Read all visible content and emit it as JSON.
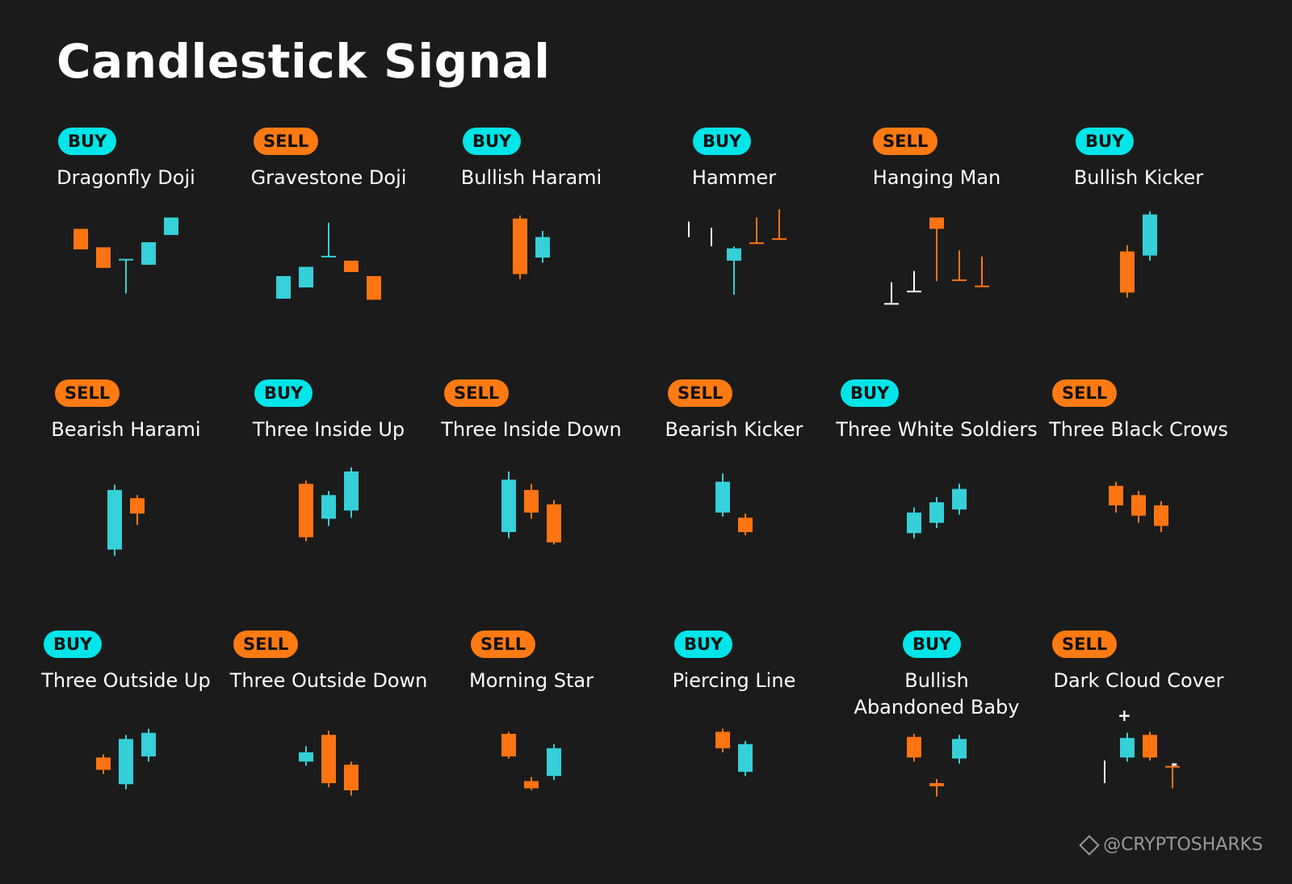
{
  "title": "Candlestick Signal",
  "watermark": "@CRYPTOSHARKS",
  "colors": {
    "bull": "#35d0d8",
    "bear": "#ff7412",
    "neutral": "#ffffff",
    "buy_badge": "#00e5e8",
    "sell_badge": "#ff7a12",
    "background": "#1b1b1b"
  },
  "patterns": [
    {
      "signal": "BUY",
      "name": "Dragonfly Doji",
      "candles": [
        {
          "o": 90,
          "c": 70,
          "h": 90,
          "l": 70
        },
        {
          "o": 72,
          "c": 52,
          "h": 72,
          "l": 52
        },
        {
          "o": 60,
          "c": 60,
          "h": 60,
          "l": 27
        },
        {
          "o": 55,
          "c": 77,
          "h": 77,
          "l": 55
        },
        {
          "o": 84,
          "c": 101,
          "h": 101,
          "l": 84
        }
      ]
    },
    {
      "signal": "SELL",
      "name": "Gravestone Doji",
      "candles": [
        {
          "o": 22,
          "c": 44,
          "h": 44,
          "l": 22
        },
        {
          "o": 33,
          "c": 53,
          "h": 53,
          "l": 33
        },
        {
          "o": 63,
          "c": 63,
          "h": 96,
          "l": 63
        },
        {
          "o": 59,
          "c": 48,
          "h": 59,
          "l": 48
        },
        {
          "o": 44,
          "c": 21,
          "h": 44,
          "l": 21
        }
      ]
    },
    {
      "signal": "BUY",
      "name": "Bullish Harami",
      "candles": [
        {
          "o": 100,
          "c": 46,
          "h": 103,
          "l": 41
        },
        {
          "o": 62,
          "c": 82,
          "h": 88,
          "l": 57
        }
      ]
    },
    {
      "signal": "BUY",
      "name": "Hammer",
      "candles": [
        {
          "o": 97,
          "c": 97,
          "h": 97,
          "l": 82,
          "style": "neutral"
        },
        {
          "o": 91,
          "c": 91,
          "h": 91,
          "l": 73,
          "style": "neutral"
        },
        {
          "o": 59,
          "c": 71,
          "h": 73,
          "l": 26
        },
        {
          "o": 76,
          "c": 76,
          "h": 101,
          "l": 76,
          "style": "bear"
        },
        {
          "o": 80,
          "c": 80,
          "h": 109,
          "l": 80,
          "style": "bear"
        }
      ]
    },
    {
      "signal": "SELL",
      "name": "Hanging Man",
      "candles": [
        {
          "o": 17,
          "c": 17,
          "h": 38,
          "l": 17,
          "style": "neutral"
        },
        {
          "o": 29,
          "c": 29,
          "h": 49,
          "l": 29,
          "style": "neutral"
        },
        {
          "o": 101,
          "c": 90,
          "h": 101,
          "l": 39
        },
        {
          "o": 40,
          "c": 40,
          "h": 69,
          "l": 40,
          "style": "bear"
        },
        {
          "o": 34,
          "c": 34,
          "h": 63,
          "l": 34,
          "style": "bear"
        }
      ]
    },
    {
      "signal": "BUY",
      "name": "Bullish Kicker",
      "candles": [
        {
          "o": 68,
          "c": 28,
          "h": 74,
          "l": 23
        },
        {
          "o": 64,
          "c": 104,
          "h": 107,
          "l": 59
        }
      ]
    },
    {
      "signal": "SELL",
      "name": "Bearish Harami",
      "candles": [
        {
          "o": 23,
          "c": 81,
          "h": 86,
          "l": 17
        },
        {
          "o": 73,
          "c": 58,
          "h": 76,
          "l": 47
        }
      ]
    },
    {
      "signal": "BUY",
      "name": "Three Inside Up",
      "candles": [
        {
          "o": 87,
          "c": 35,
          "h": 90,
          "l": 31
        },
        {
          "o": 53,
          "c": 76,
          "h": 80,
          "l": 46
        },
        {
          "o": 61,
          "c": 99,
          "h": 103,
          "l": 54
        }
      ]
    },
    {
      "signal": "SELL",
      "name": "Three Inside Down",
      "candles": [
        {
          "o": 40,
          "c": 91,
          "h": 99,
          "l": 34
        },
        {
          "o": 81,
          "c": 59,
          "h": 87,
          "l": 53
        },
        {
          "o": 67,
          "c": 30,
          "h": 71,
          "l": 28
        }
      ]
    },
    {
      "signal": "SELL",
      "name": "Bearish Kicker",
      "candles": [
        {
          "o": 59,
          "c": 89,
          "h": 97,
          "l": 55
        },
        {
          "o": 54,
          "c": 40,
          "h": 58,
          "l": 37
        }
      ]
    },
    {
      "signal": "BUY",
      "name": "Three White Soldiers",
      "candles": [
        {
          "o": 39,
          "c": 59,
          "h": 64,
          "l": 34
        },
        {
          "o": 49,
          "c": 69,
          "h": 74,
          "l": 44
        },
        {
          "o": 62,
          "c": 82,
          "h": 87,
          "l": 57
        }
      ]
    },
    {
      "signal": "SELL",
      "name": "Three Black Crows",
      "candles": [
        {
          "o": 85,
          "c": 66,
          "h": 89,
          "l": 59
        },
        {
          "o": 76,
          "c": 56,
          "h": 80,
          "l": 49
        },
        {
          "o": 66,
          "c": 46,
          "h": 70,
          "l": 40
        }
      ]
    },
    {
      "signal": "BUY",
      "name": "Three Outside Up",
      "candles": [
        {
          "o": 65,
          "c": 53,
          "h": 68,
          "l": 49
        },
        {
          "o": 39,
          "c": 83,
          "h": 87,
          "l": 34
        },
        {
          "o": 66,
          "c": 89,
          "h": 93,
          "l": 61
        }
      ]
    },
    {
      "signal": "SELL",
      "name": "Three Outside Down",
      "candles": [
        {
          "o": 61,
          "c": 70,
          "h": 76,
          "l": 57
        },
        {
          "o": 87,
          "c": 40,
          "h": 91,
          "l": 36
        },
        {
          "o": 58,
          "c": 33,
          "h": 61,
          "l": 28
        }
      ]
    },
    {
      "signal": "SELL",
      "name": "Morning Star",
      "candles": [
        {
          "o": 88,
          "c": 66,
          "h": 90,
          "l": 64
        },
        {
          "o": 42,
          "c": 35,
          "h": 46,
          "l": 33
        },
        {
          "o": 47,
          "c": 74,
          "h": 78,
          "l": 43
        }
      ]
    },
    {
      "signal": "BUY",
      "name": "Piercing Line",
      "candles": [
        {
          "o": 90,
          "c": 74,
          "h": 93,
          "l": 70
        },
        {
          "o": 51,
          "c": 78,
          "h": 81,
          "l": 47
        }
      ]
    },
    {
      "signal": "BUY",
      "name": "Bullish\nAbandoned Baby",
      "candles": [
        {
          "o": 85,
          "c": 65,
          "h": 88,
          "l": 61
        },
        {
          "o": 40,
          "c": 37,
          "h": 44,
          "l": 27
        },
        {
          "o": 64,
          "c": 83,
          "h": 87,
          "l": 59
        }
      ]
    },
    {
      "signal": "SELL",
      "name": "Dark Cloud Cover",
      "candles": [
        {
          "o": 62,
          "c": 62,
          "h": 62,
          "l": 40,
          "style": "neutral"
        },
        {
          "o": 65,
          "c": 84,
          "h": 89,
          "l": 61
        },
        {
          "o": 87,
          "c": 65,
          "h": 90,
          "l": 62
        },
        {
          "o": 56,
          "c": 56,
          "h": 56,
          "l": 35,
          "style": "bear"
        }
      ],
      "annotations": [
        "+",
        "-"
      ]
    }
  ]
}
